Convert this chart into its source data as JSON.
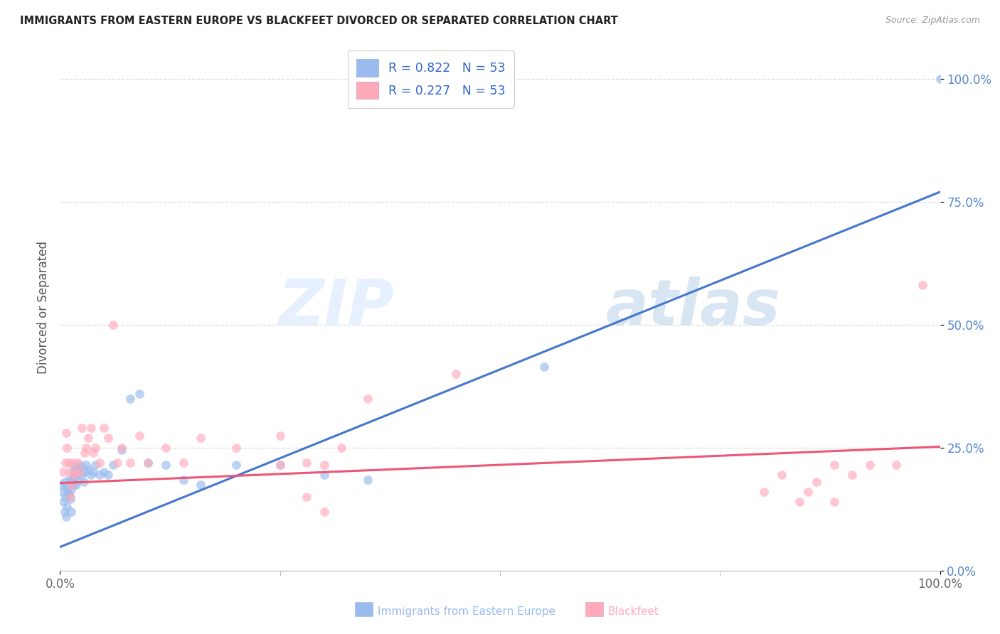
{
  "title": "IMMIGRANTS FROM EASTERN EUROPE VS BLACKFEET DIVORCED OR SEPARATED CORRELATION CHART",
  "source": "Source: ZipAtlas.com",
  "ylabel": "Divorced or Separated",
  "blue_label": "Immigrants from Eastern Europe",
  "pink_label": "Blackfeet",
  "blue_R": "0.822",
  "pink_R": "0.227",
  "N": "53",
  "blue_scatter_color": "#99BBEE",
  "pink_scatter_color": "#FFAABB",
  "blue_line_color": "#4477CC",
  "pink_line_color": "#EE5577",
  "title_color": "#222222",
  "source_color": "#999999",
  "ylabel_color": "#555555",
  "ytick_color": "#5588CC",
  "xtick_color": "#666666",
  "grid_color": "#DDDDDD",
  "legend_text_color": "#333333",
  "legend_RN_color": "#3366CC",
  "blue_scatter_x": [
    0.002,
    0.003,
    0.004,
    0.005,
    0.005,
    0.006,
    0.007,
    0.007,
    0.008,
    0.009,
    0.01,
    0.01,
    0.011,
    0.012,
    0.013,
    0.013,
    0.014,
    0.015,
    0.015,
    0.016,
    0.017,
    0.018,
    0.018,
    0.019,
    0.02,
    0.021,
    0.022,
    0.023,
    0.025,
    0.027,
    0.028,
    0.03,
    0.032,
    0.035,
    0.038,
    0.04,
    0.045,
    0.05,
    0.055,
    0.06,
    0.07,
    0.08,
    0.09,
    0.1,
    0.12,
    0.14,
    0.16,
    0.2,
    0.25,
    0.3,
    0.35,
    0.55,
    1.0
  ],
  "blue_scatter_y": [
    0.175,
    0.16,
    0.14,
    0.12,
    0.18,
    0.15,
    0.11,
    0.17,
    0.13,
    0.16,
    0.185,
    0.155,
    0.175,
    0.145,
    0.12,
    0.165,
    0.185,
    0.175,
    0.2,
    0.19,
    0.21,
    0.195,
    0.175,
    0.2,
    0.21,
    0.185,
    0.2,
    0.215,
    0.195,
    0.18,
    0.2,
    0.215,
    0.205,
    0.195,
    0.2,
    0.215,
    0.195,
    0.2,
    0.195,
    0.215,
    0.245,
    0.35,
    0.36,
    0.22,
    0.215,
    0.185,
    0.175,
    0.215,
    0.215,
    0.195,
    0.185,
    0.415,
    1.0
  ],
  "pink_scatter_x": [
    0.004,
    0.006,
    0.007,
    0.008,
    0.01,
    0.011,
    0.012,
    0.013,
    0.015,
    0.016,
    0.018,
    0.02,
    0.022,
    0.025,
    0.028,
    0.03,
    0.032,
    0.035,
    0.038,
    0.04,
    0.045,
    0.05,
    0.055,
    0.06,
    0.065,
    0.07,
    0.08,
    0.09,
    0.1,
    0.12,
    0.14,
    0.16,
    0.2,
    0.25,
    0.28,
    0.3,
    0.32,
    0.35,
    0.45,
    0.8,
    0.82,
    0.84,
    0.86,
    0.88,
    0.9,
    0.92,
    0.88,
    0.85,
    0.95,
    0.98,
    0.3,
    0.28,
    0.25
  ],
  "pink_scatter_y": [
    0.2,
    0.22,
    0.28,
    0.25,
    0.22,
    0.2,
    0.15,
    0.175,
    0.22,
    0.195,
    0.2,
    0.22,
    0.2,
    0.29,
    0.24,
    0.25,
    0.27,
    0.29,
    0.24,
    0.25,
    0.22,
    0.29,
    0.27,
    0.5,
    0.22,
    0.25,
    0.22,
    0.275,
    0.22,
    0.25,
    0.22,
    0.27,
    0.25,
    0.275,
    0.22,
    0.215,
    0.25,
    0.35,
    0.4,
    0.16,
    0.195,
    0.14,
    0.18,
    0.215,
    0.195,
    0.215,
    0.14,
    0.16,
    0.215,
    0.58,
    0.12,
    0.15,
    0.215
  ],
  "blue_trend_x": [
    0.0,
    1.0
  ],
  "blue_trend_y": [
    0.048,
    0.77
  ],
  "pink_trend_x": [
    0.0,
    1.0
  ],
  "pink_trend_y": [
    0.178,
    0.252
  ],
  "ytick_values": [
    0.0,
    0.25,
    0.5,
    0.75,
    1.0
  ],
  "ytick_labels": [
    "0.0%",
    "25.0%",
    "50.0%",
    "75.0%",
    "100.0%"
  ],
  "xtick_values": [
    0.0,
    1.0
  ],
  "xtick_labels": [
    "0.0%",
    "100.0%"
  ]
}
